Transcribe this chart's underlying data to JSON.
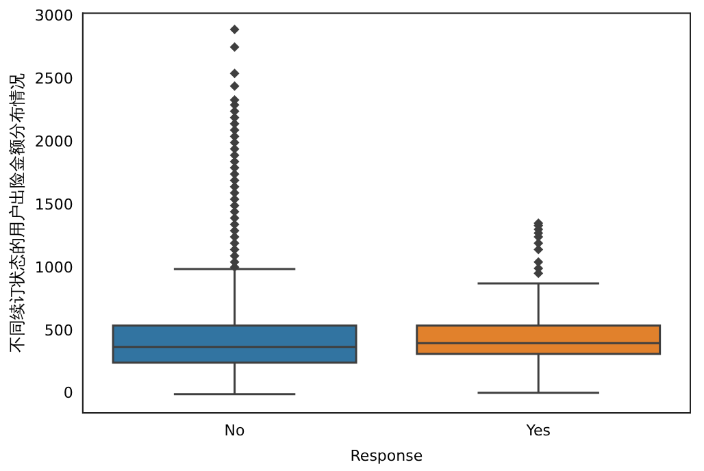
{
  "chart_data": {
    "type": "box",
    "xlabel": "Response",
    "ylabel": "不同续订状态的用户出险金额分布情况",
    "categories": [
      "No",
      "Yes"
    ],
    "colors": [
      "#3274a1",
      "#e1812c"
    ],
    "boxes": [
      {
        "low": 0,
        "q1": 250,
        "median": 375,
        "q3": 545,
        "high": 995,
        "outliers": [
          1010,
          1050,
          1100,
          1150,
          1200,
          1250,
          1300,
          1350,
          1400,
          1450,
          1500,
          1550,
          1600,
          1650,
          1700,
          1750,
          1800,
          1850,
          1900,
          1950,
          2000,
          2050,
          2100,
          2150,
          2200,
          2250,
          2300,
          2340,
          2450,
          2550,
          2760,
          2900
        ]
      },
      {
        "low": 10,
        "q1": 320,
        "median": 405,
        "q3": 545,
        "high": 880,
        "outliers": [
          960,
          1000,
          1050,
          1150,
          1200,
          1250,
          1280,
          1310,
          1340,
          1360
        ]
      }
    ],
    "ylim": [
      -150,
      3030
    ],
    "yticks": [
      0,
      500,
      1000,
      1500,
      2000,
      2500,
      3000
    ],
    "grid": false,
    "legend": false,
    "marker": "diamond"
  }
}
